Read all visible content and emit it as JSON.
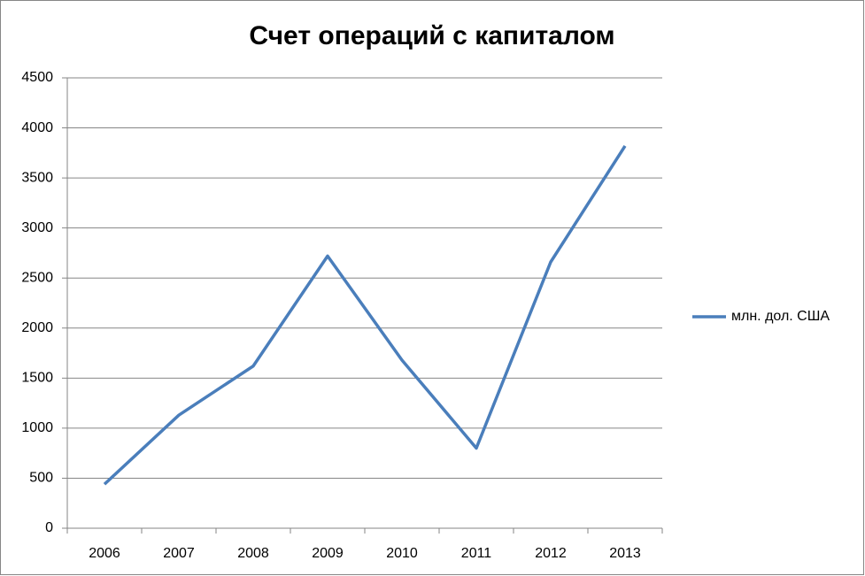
{
  "chart_data": {
    "type": "line",
    "title": "Счет операций с капиталом",
    "categories": [
      "2006",
      "2007",
      "2008",
      "2009",
      "2010",
      "2011",
      "2012",
      "2013"
    ],
    "series": [
      {
        "name": "млн. дол. США",
        "color": "#4a7ebb",
        "values": [
          440,
          1130,
          1620,
          2720,
          1680,
          800,
          2660,
          3820
        ]
      }
    ],
    "ylim": [
      0,
      4500
    ],
    "yticks": [
      0,
      500,
      1000,
      1500,
      2000,
      2500,
      3000,
      3500,
      4000,
      4500
    ],
    "grid": true,
    "legend": "right"
  }
}
